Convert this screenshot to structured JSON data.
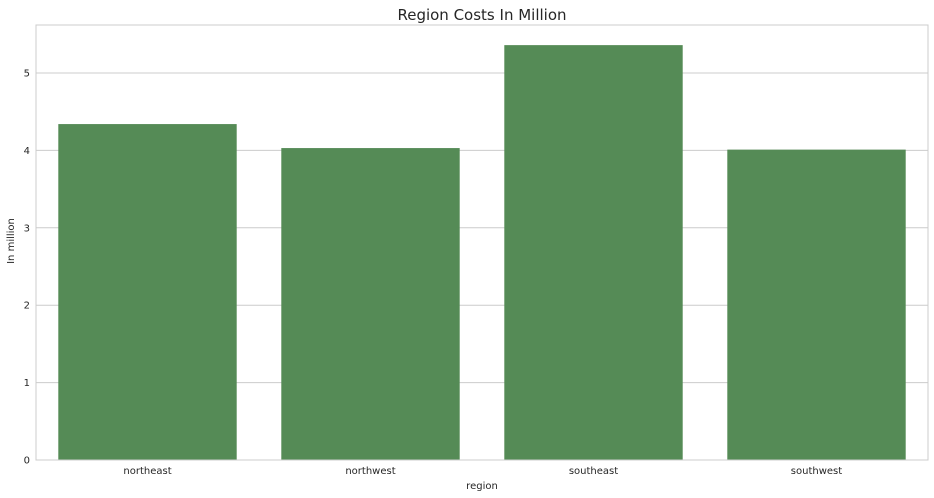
{
  "chart_data": {
    "type": "bar",
    "title": "Region Costs In Million",
    "xlabel": "region",
    "ylabel": "In million",
    "categories": [
      "northeast",
      "northwest",
      "southeast",
      "southwest"
    ],
    "values": [
      4.34,
      4.03,
      5.36,
      4.01
    ],
    "ylim": [
      0,
      5.62
    ],
    "yticks": [
      0,
      1,
      2,
      3,
      4,
      5
    ],
    "grid": true,
    "colors": {
      "bar": "#558b56",
      "grid": "#cccccc",
      "frame": "#cccccc",
      "text": "#262626"
    }
  }
}
